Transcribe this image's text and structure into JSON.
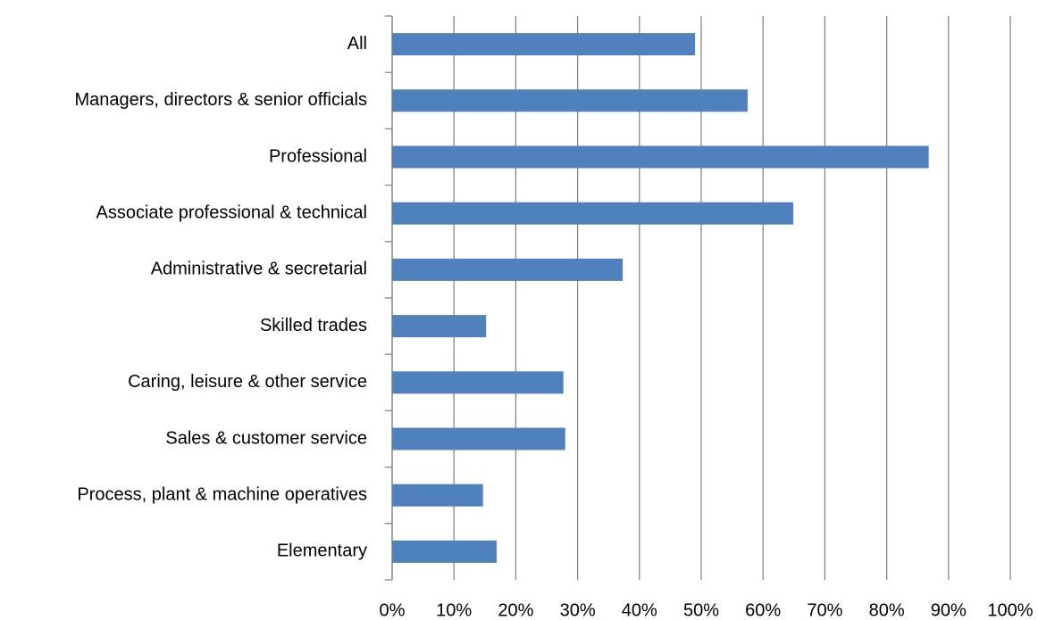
{
  "chart_data": {
    "type": "bar",
    "orientation": "horizontal",
    "categories": [
      "All",
      "Managers, directors & senior officials",
      "Professional",
      "Associate professional & technical",
      "Administrative & secretarial",
      "Skilled trades",
      "Caring, leisure & other service",
      "Sales & customer service",
      "Process, plant & machine operatives",
      "Elementary"
    ],
    "values": [
      49.0,
      57.5,
      86.8,
      64.9,
      37.3,
      15.2,
      27.7,
      28.0,
      14.7,
      16.9
    ],
    "color": "#4f81bd",
    "xlim": [
      0,
      100
    ],
    "xticks": [
      {
        "value": 0,
        "label": "0%"
      },
      {
        "value": 10,
        "label": "10%"
      },
      {
        "value": 20,
        "label": "20%"
      },
      {
        "value": 30,
        "label": "30%"
      },
      {
        "value": 40,
        "label": "40%"
      },
      {
        "value": 50,
        "label": "50%"
      },
      {
        "value": 60,
        "label": "60%"
      },
      {
        "value": 70,
        "label": "70%"
      },
      {
        "value": 80,
        "label": "80%"
      },
      {
        "value": 90,
        "label": "90%"
      },
      {
        "value": 100,
        "label": "100%"
      }
    ],
    "grid": true
  }
}
